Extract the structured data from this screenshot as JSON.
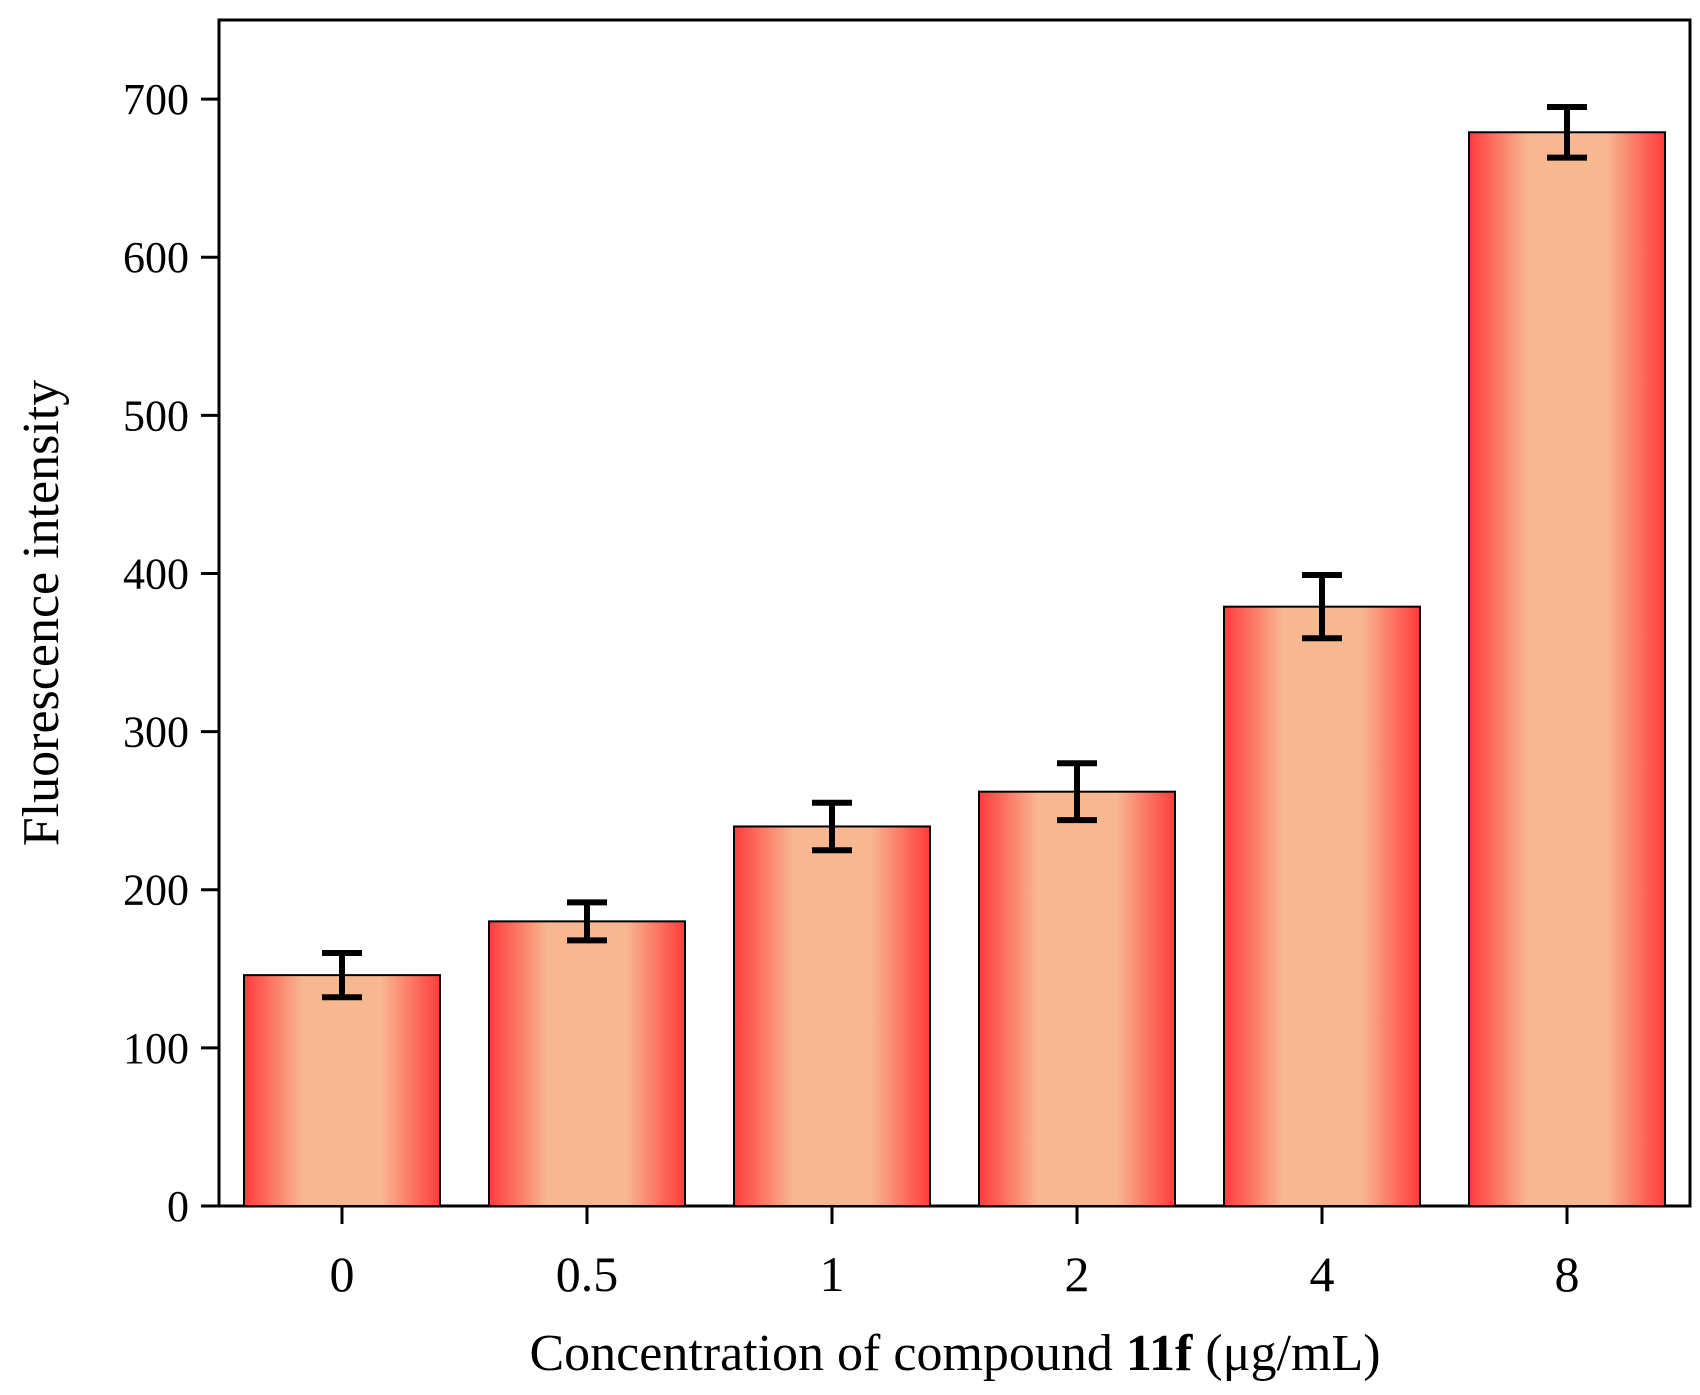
{
  "chart_data": {
    "type": "bar",
    "categories": [
      "0",
      "0.5",
      "1",
      "2",
      "4",
      "8"
    ],
    "values": [
      146,
      180,
      240,
      262,
      379,
      679
    ],
    "errors": [
      14,
      12,
      15,
      18,
      20,
      16
    ],
    "ylim": [
      0,
      750
    ],
    "yticks": [
      0,
      100,
      200,
      300,
      400,
      500,
      600,
      700
    ],
    "ylabel": "Fluorescence intensity",
    "xlabel": {
      "prefix": "Concentration of compound ",
      "bold": "11f",
      "suffix": " (μg/mL)"
    },
    "colors": {
      "bar_edge": "#ff3b3b",
      "bar_center": "#f7b891",
      "error_bar": "#000000"
    }
  }
}
